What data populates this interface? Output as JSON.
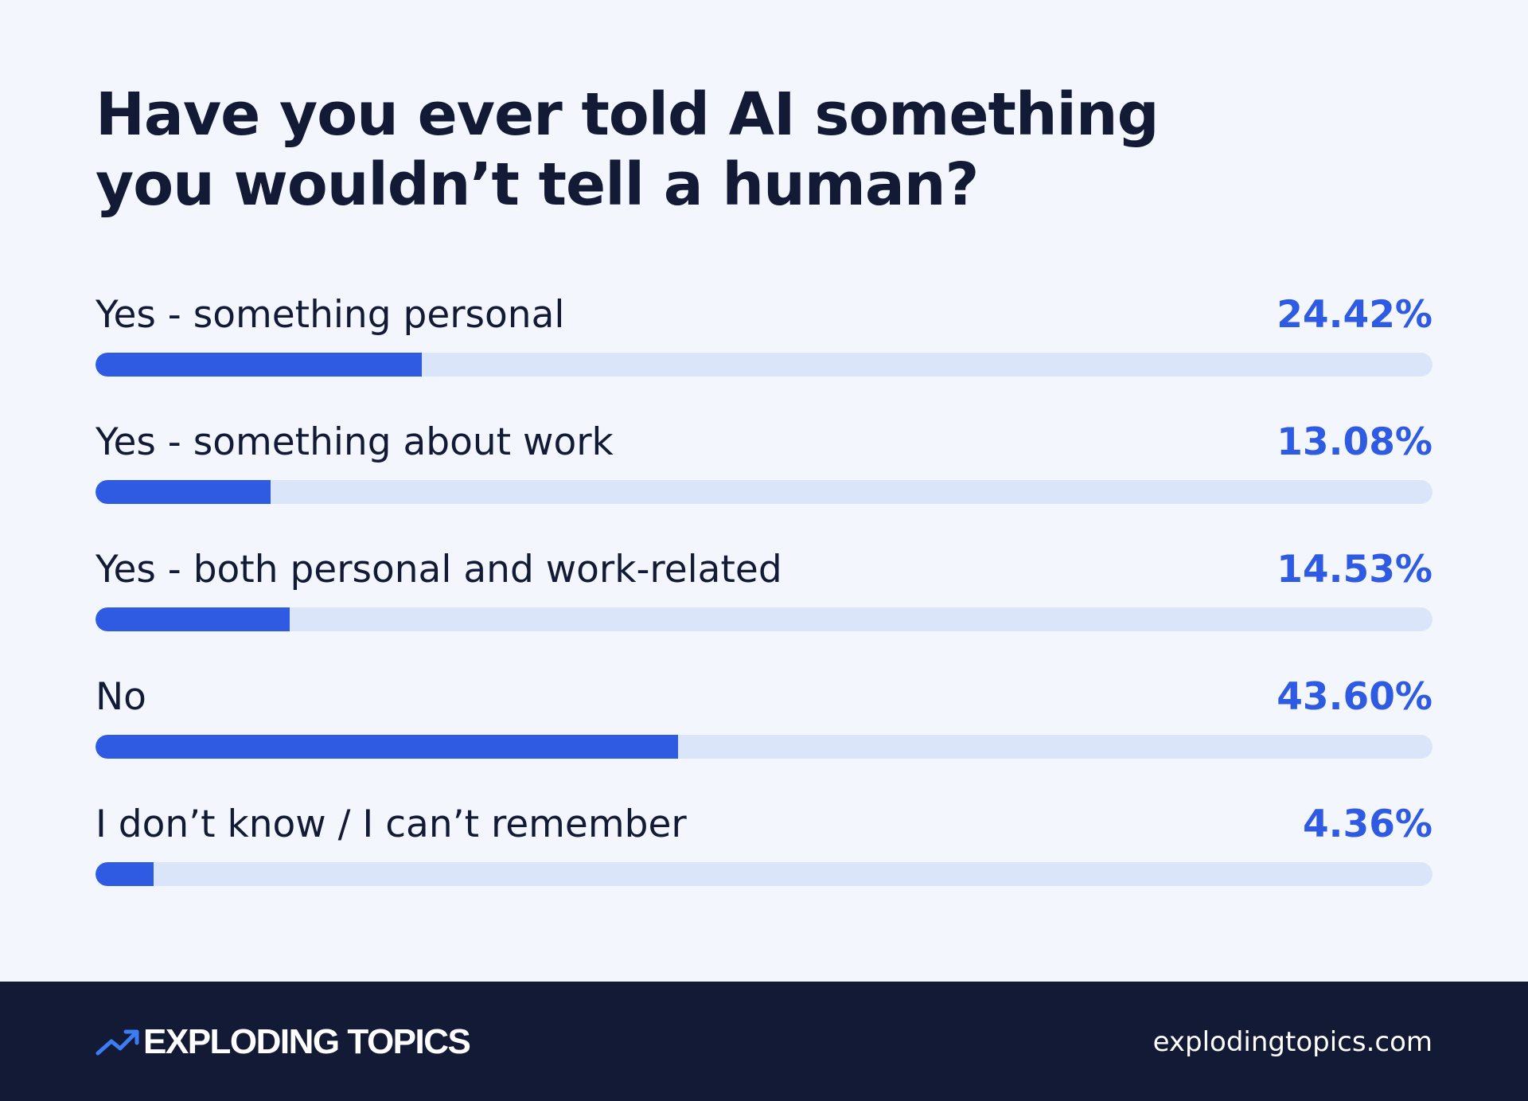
{
  "chart_data": {
    "type": "bar",
    "title": "Have you ever told AI something you wouldn’t tell a human?",
    "categories": [
      "Yes - something personal",
      "Yes - something about work",
      "Yes - both personal and work-related",
      "No",
      "I don’t know / I can’t remember"
    ],
    "values": [
      24.42,
      13.08,
      14.53,
      43.6,
      4.36
    ],
    "value_labels": [
      "24.42%",
      "13.08%",
      "14.53%",
      "43.60%",
      "4.36%"
    ],
    "unit": "%",
    "xlim": [
      0,
      100
    ],
    "orientation": "horizontal",
    "grid": false,
    "legend": "none",
    "colors": {
      "bar_fill": "#2f5be3",
      "bar_track": "#dbe5fa",
      "value_text": "#2f5be3",
      "label_text": "#131a36",
      "background": "#f3f7fd"
    }
  },
  "footer": {
    "brand_name": "EXPLODING TOPICS",
    "brand_icon": "trending-up-icon",
    "website": "explodingtopics.com",
    "background": "#131a36",
    "icon_color": "#3d7cf2"
  }
}
